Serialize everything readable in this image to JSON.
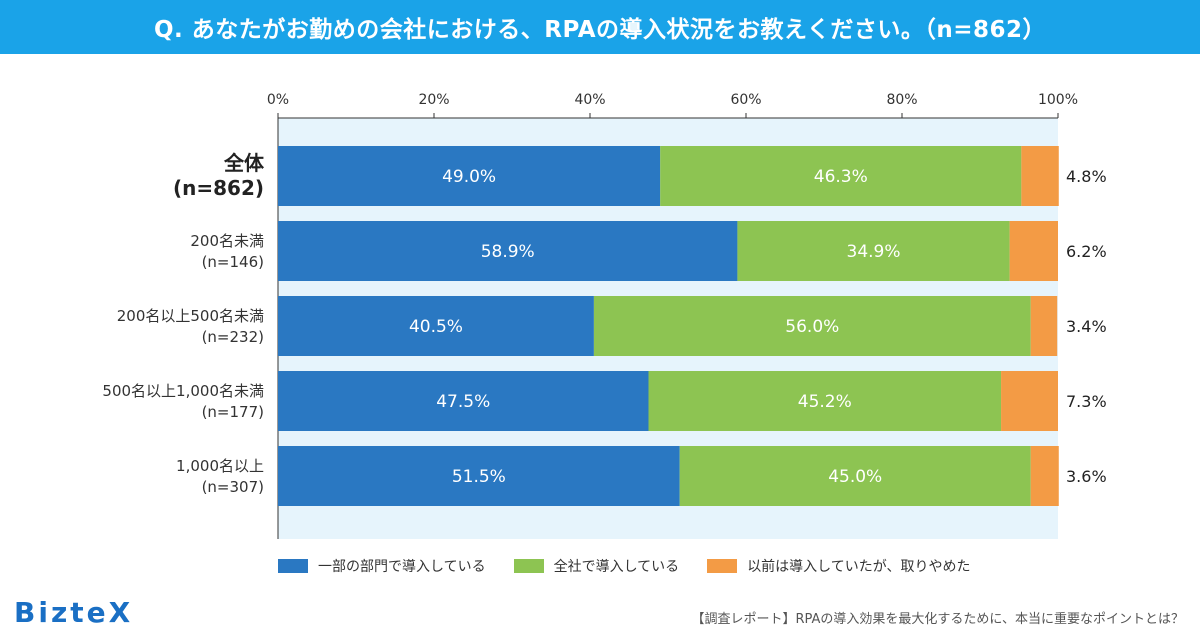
{
  "title": "Q. あなたがお勤めの会社における、RPAの導入状況をお教えください。（n=862）",
  "brand": "BizteX",
  "footer_note": "【調査レポート】RPAの導入効果を最大化するために、本当に重要なポイントとは？",
  "colors": {
    "title_bg": "#1aa3e8",
    "plot_bg": "#e6f4fc",
    "series": [
      "#2a78c2",
      "#8dc452",
      "#f39b45"
    ]
  },
  "chart_data": {
    "type": "bar",
    "orientation": "horizontal",
    "stacked": true,
    "normalized": true,
    "title": "Q. あなたがお勤めの会社における、RPAの導入状況をお教えください。（n=862）",
    "xlabel": "",
    "ylabel": "",
    "xlim": [
      0,
      100
    ],
    "x_ticks": [
      "0%",
      "20%",
      "40%",
      "60%",
      "80%",
      "100%"
    ],
    "x_tick_values": [
      0,
      20,
      40,
      60,
      80,
      100
    ],
    "grid": false,
    "legend_position": "bottom",
    "categories": [
      {
        "line1": "全体",
        "line2": "(n=862)",
        "emphasis": true
      },
      {
        "line1": "200名未満",
        "line2": "(n=146)",
        "emphasis": false
      },
      {
        "line1": "200名以上500名未満",
        "line2": "(n=232)",
        "emphasis": false
      },
      {
        "line1": "500名以上1,000名未満",
        "line2": "(n=177)",
        "emphasis": false
      },
      {
        "line1": "1,000名以上",
        "line2": "(n=307)",
        "emphasis": false
      }
    ],
    "series": [
      {
        "name": "一部の部門で導入している",
        "values": [
          49.0,
          58.9,
          40.5,
          47.5,
          51.5
        ],
        "labels": [
          "49.0%",
          "58.9%",
          "40.5%",
          "47.5%",
          "51.5%"
        ]
      },
      {
        "name": "全社で導入している",
        "values": [
          46.3,
          34.9,
          56.0,
          45.2,
          45.0
        ],
        "labels": [
          "46.3%",
          "34.9%",
          "56.0%",
          "45.2%",
          "45.0%"
        ]
      },
      {
        "name": "以前は導入していたが、取りやめた",
        "values": [
          4.8,
          6.2,
          3.4,
          7.3,
          3.6
        ],
        "labels": [
          "4.8%",
          "6.2%",
          "3.4%",
          "7.3%",
          "3.6%"
        ]
      }
    ]
  }
}
